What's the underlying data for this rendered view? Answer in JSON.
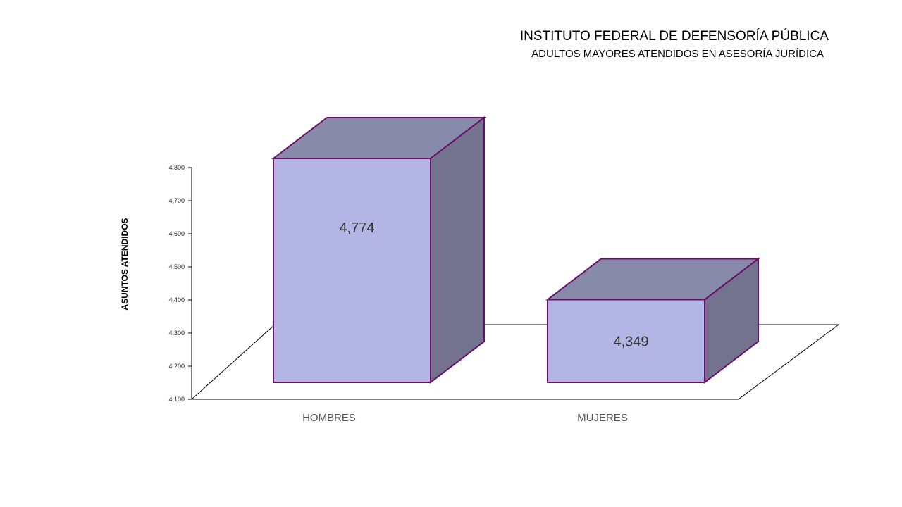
{
  "title": "INSTITUTO FEDERAL DE DEFENSORÍA PÚBLICA",
  "subtitle": "ADULTOS MAYORES ATENDIDOS EN ASESORÍA JURÍDICA",
  "colors": {
    "front": "#B3B6E4",
    "top": "#888AAA",
    "side": "#73738F",
    "edge": "#6B0F6B"
  },
  "chart_data": {
    "type": "bar",
    "style": "3d",
    "title": "INSTITUTO FEDERAL DE DEFENSORÍA PÚBLICA",
    "subtitle": "ADULTOS MAYORES ATENDIDOS EN ASESORÍA JURÍDICA",
    "xlabel": "",
    "ylabel": "ASUNTOS ATENDIDOS",
    "categories": [
      "HOMBRES",
      "MUJERES"
    ],
    "values": [
      4774,
      4349
    ],
    "value_labels": [
      "4,774",
      "4,349"
    ],
    "ylim": [
      4100,
      4800
    ],
    "yticks": [
      "4,100",
      "4,200",
      "4,300",
      "4,400",
      "4,500",
      "4,600",
      "4,700",
      "4,800"
    ],
    "grid": false,
    "legend": "none"
  }
}
